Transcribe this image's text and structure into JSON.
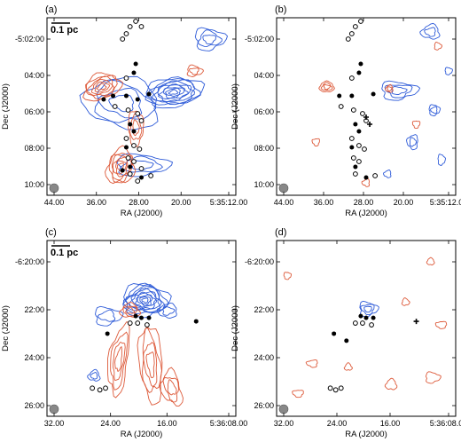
{
  "chart_data": [
    {
      "type": "contour",
      "panel_label": "(a)",
      "scale_bar": "0.1 pc",
      "xlabel": "RA (J2000)",
      "ylabel": "Dec (J2000)",
      "x_ticks": [
        "44.00",
        "36.00",
        "28.00",
        "20.00",
        "5:35:12.00"
      ],
      "y_ticks": [
        "-5:02:00",
        "04:00",
        "06:00",
        "08:00",
        "10:00"
      ],
      "series": [
        {
          "color": "#2e5bd8",
          "components": [
            {
              "cx": 0.67,
              "cy": 0.42,
              "rx": 0.15,
              "ry": 0.08,
              "levels": 9,
              "rot": -8
            },
            {
              "cx": 0.4,
              "cy": 0.48,
              "rx": 0.2,
              "ry": 0.14,
              "levels": 4,
              "rot": 10
            },
            {
              "cx": 0.86,
              "cy": 0.12,
              "rx": 0.08,
              "ry": 0.06,
              "levels": 3,
              "rot": 0
            },
            {
              "cx": 0.5,
              "cy": 0.83,
              "rx": 0.14,
              "ry": 0.06,
              "levels": 3,
              "rot": 0
            }
          ]
        },
        {
          "color": "#dd5a3a",
          "components": [
            {
              "cx": 0.29,
              "cy": 0.39,
              "rx": 0.1,
              "ry": 0.07,
              "levels": 6,
              "rot": -20
            },
            {
              "cx": 0.39,
              "cy": 0.84,
              "rx": 0.07,
              "ry": 0.1,
              "levels": 6,
              "rot": 15
            },
            {
              "cx": 0.47,
              "cy": 0.62,
              "rx": 0.04,
              "ry": 0.1,
              "levels": 3,
              "rot": 0
            },
            {
              "cx": 0.78,
              "cy": 0.3,
              "rx": 0.04,
              "ry": 0.03,
              "levels": 2,
              "rot": 0
            }
          ]
        }
      ],
      "sources_filled": [
        [
          0.47,
          0.26
        ],
        [
          0.46,
          0.31
        ],
        [
          0.3,
          0.46
        ],
        [
          0.35,
          0.44
        ],
        [
          0.42,
          0.44
        ],
        [
          0.48,
          0.46
        ],
        [
          0.54,
          0.43
        ],
        [
          0.44,
          0.6
        ],
        [
          0.46,
          0.64
        ],
        [
          0.42,
          0.73
        ],
        [
          0.44,
          0.84
        ],
        [
          0.4,
          0.86
        ],
        [
          0.5,
          0.9
        ]
      ],
      "sources_open": [
        [
          0.44,
          0.05
        ],
        [
          0.42,
          0.09
        ],
        [
          0.4,
          0.12
        ],
        [
          0.47,
          0.02
        ],
        [
          0.5,
          0.05
        ],
        [
          0.42,
          0.34
        ],
        [
          0.36,
          0.5
        ],
        [
          0.43,
          0.52
        ],
        [
          0.48,
          0.54
        ],
        [
          0.5,
          0.58
        ],
        [
          0.42,
          0.68
        ],
        [
          0.46,
          0.72
        ],
        [
          0.49,
          0.74
        ],
        [
          0.43,
          0.79
        ],
        [
          0.46,
          0.81
        ],
        [
          0.5,
          0.85
        ],
        [
          0.44,
          0.88
        ],
        [
          0.55,
          0.89
        ],
        [
          0.48,
          0.92
        ]
      ],
      "sources_cross": []
    },
    {
      "type": "contour",
      "panel_label": "(b)",
      "scale_bar": "",
      "xlabel": "RA (J2000)",
      "ylabel": "Dec (J2000)",
      "x_ticks": [
        "44.00",
        "36.00",
        "28.00",
        "20.00",
        "5:35:12.00"
      ],
      "y_ticks": [
        "-5:02:00",
        "04:00",
        "06:00",
        "08:00",
        "10:00"
      ],
      "series": [
        {
          "color": "#2e5bd8",
          "components": [
            {
              "cx": 0.68,
              "cy": 0.41,
              "rx": 0.1,
              "ry": 0.05,
              "levels": 3,
              "rot": 0
            },
            {
              "cx": 0.86,
              "cy": 0.08,
              "rx": 0.05,
              "ry": 0.04,
              "levels": 2,
              "rot": 0
            },
            {
              "cx": 0.88,
              "cy": 0.52,
              "rx": 0.03,
              "ry": 0.03,
              "levels": 2,
              "rot": 0
            },
            {
              "cx": 0.76,
              "cy": 0.7,
              "rx": 0.03,
              "ry": 0.04,
              "levels": 2,
              "rot": 0
            },
            {
              "cx": 0.92,
              "cy": 0.8,
              "rx": 0.02,
              "ry": 0.03,
              "levels": 1,
              "rot": 0
            },
            {
              "cx": 0.62,
              "cy": 0.88,
              "rx": 0.02,
              "ry": 0.02,
              "levels": 1,
              "rot": 0
            },
            {
              "cx": 0.96,
              "cy": 0.3,
              "rx": 0.02,
              "ry": 0.02,
              "levels": 1,
              "rot": 0
            }
          ]
        },
        {
          "color": "#dd5a3a",
          "components": [
            {
              "cx": 0.28,
              "cy": 0.39,
              "rx": 0.04,
              "ry": 0.03,
              "levels": 3,
              "rot": 0
            },
            {
              "cx": 0.63,
              "cy": 0.4,
              "rx": 0.02,
              "ry": 0.02,
              "levels": 2,
              "rot": 0
            },
            {
              "cx": 0.9,
              "cy": 0.16,
              "rx": 0.02,
              "ry": 0.02,
              "levels": 1,
              "rot": 0
            },
            {
              "cx": 0.78,
              "cy": 0.6,
              "rx": 0.02,
              "ry": 0.02,
              "levels": 1,
              "rot": 0
            },
            {
              "cx": 0.22,
              "cy": 0.7,
              "rx": 0.02,
              "ry": 0.02,
              "levels": 1,
              "rot": 0
            },
            {
              "cx": 0.5,
              "cy": 0.93,
              "rx": 0.02,
              "ry": 0.02,
              "levels": 1,
              "rot": 0
            }
          ]
        }
      ],
      "sources_filled": [
        [
          0.47,
          0.26
        ],
        [
          0.46,
          0.31
        ],
        [
          0.35,
          0.44
        ],
        [
          0.42,
          0.44
        ],
        [
          0.54,
          0.43
        ],
        [
          0.44,
          0.6
        ],
        [
          0.46,
          0.64
        ],
        [
          0.42,
          0.73
        ],
        [
          0.44,
          0.84
        ],
        [
          0.5,
          0.9
        ]
      ],
      "sources_open": [
        [
          0.44,
          0.05
        ],
        [
          0.42,
          0.09
        ],
        [
          0.4,
          0.12
        ],
        [
          0.47,
          0.02
        ],
        [
          0.42,
          0.34
        ],
        [
          0.36,
          0.5
        ],
        [
          0.43,
          0.52
        ],
        [
          0.48,
          0.54
        ],
        [
          0.5,
          0.58
        ],
        [
          0.42,
          0.68
        ],
        [
          0.46,
          0.72
        ],
        [
          0.49,
          0.74
        ],
        [
          0.43,
          0.79
        ],
        [
          0.46,
          0.81
        ],
        [
          0.44,
          0.88
        ],
        [
          0.55,
          0.89
        ]
      ],
      "sources_cross": [
        [
          0.5,
          0.56
        ],
        [
          0.52,
          0.6
        ]
      ]
    },
    {
      "type": "contour",
      "panel_label": "(c)",
      "scale_bar": "0.1 pc",
      "xlabel": "RA (J2000)",
      "ylabel": "Dec (J2000)",
      "x_ticks": [
        "32.00",
        "24.00",
        "16.00",
        "5:36:08.00"
      ],
      "y_ticks": [
        "-6:20:00",
        "22:00",
        "24:00",
        "26:00"
      ],
      "series": [
        {
          "color": "#2e5bd8",
          "components": [
            {
              "cx": 0.52,
              "cy": 0.34,
              "rx": 0.12,
              "ry": 0.09,
              "levels": 10,
              "rot": 0
            },
            {
              "cx": 0.32,
              "cy": 0.43,
              "rx": 0.07,
              "ry": 0.05,
              "levels": 2,
              "rot": 0
            },
            {
              "cx": 0.64,
              "cy": 0.4,
              "rx": 0.05,
              "ry": 0.04,
              "levels": 2,
              "rot": 0
            },
            {
              "cx": 0.25,
              "cy": 0.77,
              "rx": 0.03,
              "ry": 0.03,
              "levels": 2,
              "rot": 0
            }
          ]
        },
        {
          "color": "#dd5a3a",
          "components": [
            {
              "cx": 0.44,
              "cy": 0.4,
              "rx": 0.05,
              "ry": 0.04,
              "levels": 3,
              "rot": 0
            },
            {
              "cx": 0.38,
              "cy": 0.68,
              "rx": 0.05,
              "ry": 0.2,
              "levels": 4,
              "rot": 8
            },
            {
              "cx": 0.55,
              "cy": 0.7,
              "rx": 0.06,
              "ry": 0.22,
              "levels": 4,
              "rot": -5
            },
            {
              "cx": 0.66,
              "cy": 0.84,
              "rx": 0.05,
              "ry": 0.1,
              "levels": 3,
              "rot": -15
            }
          ]
        }
      ],
      "sources_filled": [
        [
          0.47,
          0.43
        ],
        [
          0.5,
          0.44
        ],
        [
          0.54,
          0.44
        ],
        [
          0.32,
          0.53
        ],
        [
          0.79,
          0.46
        ]
      ],
      "sources_open": [
        [
          0.44,
          0.47
        ],
        [
          0.48,
          0.47
        ],
        [
          0.53,
          0.48
        ],
        [
          0.24,
          0.84
        ],
        [
          0.28,
          0.85
        ],
        [
          0.31,
          0.84
        ]
      ],
      "sources_cross": []
    },
    {
      "type": "contour",
      "panel_label": "(d)",
      "scale_bar": "",
      "xlabel": "RA (J2000)",
      "ylabel": "Dec (J2000)",
      "x_ticks": [
        "32.00",
        "24.00",
        "16.00",
        "5:36:08.00"
      ],
      "y_ticks": [
        "-6:20:00",
        "22:00",
        "24:00",
        "26:00"
      ],
      "series": [
        {
          "color": "#2e5bd8",
          "components": [
            {
              "cx": 0.51,
              "cy": 0.39,
              "rx": 0.05,
              "ry": 0.04,
              "levels": 3,
              "rot": 0
            }
          ]
        },
        {
          "color": "#dd5a3a",
          "components": [
            {
              "cx": 0.86,
              "cy": 0.12,
              "rx": 0.02,
              "ry": 0.02,
              "levels": 1,
              "rot": 0
            },
            {
              "cx": 0.72,
              "cy": 0.35,
              "rx": 0.02,
              "ry": 0.02,
              "levels": 1,
              "rot": 0
            },
            {
              "cx": 0.92,
              "cy": 0.48,
              "rx": 0.03,
              "ry": 0.02,
              "levels": 1,
              "rot": 0
            },
            {
              "cx": 0.2,
              "cy": 0.7,
              "rx": 0.03,
              "ry": 0.02,
              "levels": 1,
              "rot": 0
            },
            {
              "cx": 0.4,
              "cy": 0.72,
              "rx": 0.02,
              "ry": 0.02,
              "levels": 1,
              "rot": 0
            },
            {
              "cx": 0.64,
              "cy": 0.82,
              "rx": 0.03,
              "ry": 0.03,
              "levels": 1,
              "rot": 0
            },
            {
              "cx": 0.87,
              "cy": 0.78,
              "rx": 0.04,
              "ry": 0.03,
              "levels": 1,
              "rot": 0
            },
            {
              "cx": 0.12,
              "cy": 0.87,
              "rx": 0.03,
              "ry": 0.02,
              "levels": 1,
              "rot": 0
            },
            {
              "cx": 0.06,
              "cy": 0.2,
              "rx": 0.02,
              "ry": 0.02,
              "levels": 1,
              "rot": 0
            }
          ]
        }
      ],
      "sources_filled": [
        [
          0.47,
          0.43
        ],
        [
          0.5,
          0.44
        ],
        [
          0.54,
          0.44
        ],
        [
          0.32,
          0.53
        ],
        [
          0.39,
          0.57
        ]
      ],
      "sources_open": [
        [
          0.44,
          0.47
        ],
        [
          0.48,
          0.47
        ],
        [
          0.53,
          0.48
        ],
        [
          0.3,
          0.84
        ],
        [
          0.33,
          0.85
        ],
        [
          0.36,
          0.84
        ]
      ],
      "sources_cross": [
        [
          0.78,
          0.46
        ]
      ]
    }
  ]
}
